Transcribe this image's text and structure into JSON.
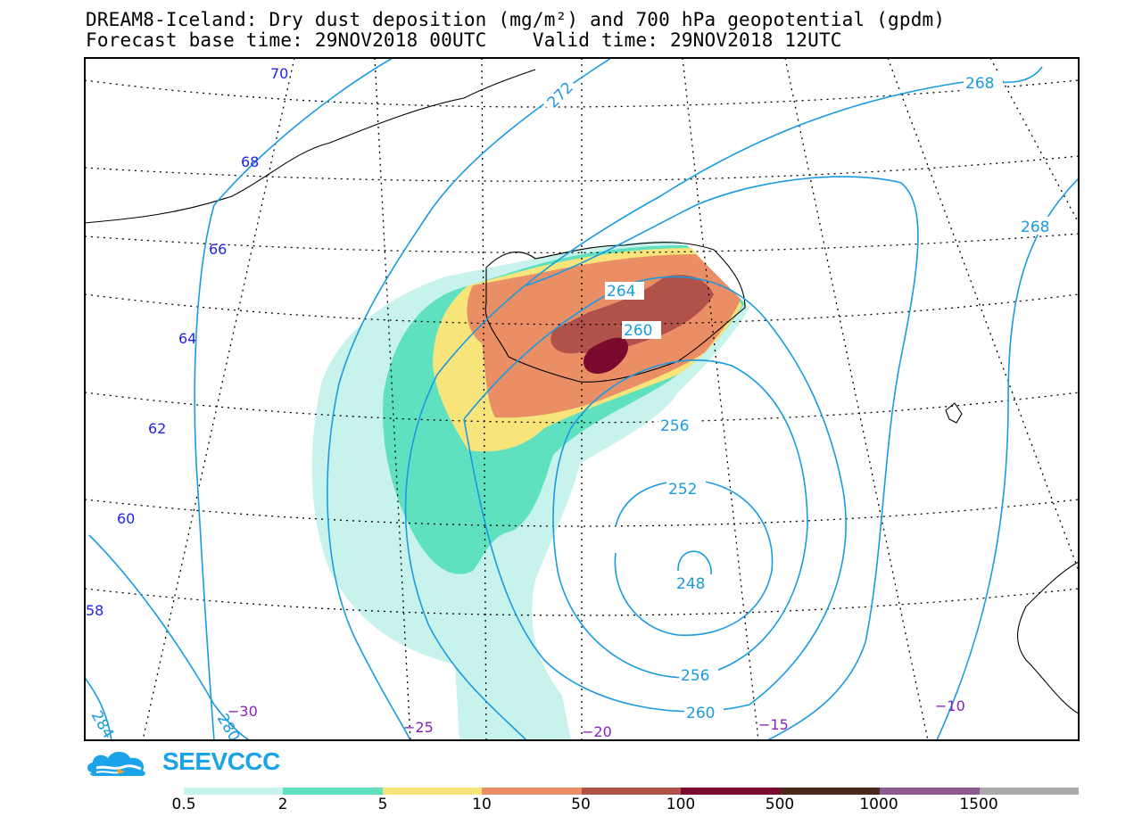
{
  "title": {
    "line1": "DREAM8-Iceland: Dry dust deposition (mg/m²) and 700 hPa geopotential (gpdm)",
    "line2": "Forecast base time: 29NOV2018 00UTC    Valid time: 29NOV2018 12UTC"
  },
  "map": {
    "contour_color": "#1a9be0",
    "contour_labels": [
      "272",
      "268",
      "268",
      "264",
      "260",
      "256",
      "252",
      "248",
      "256",
      "260",
      "280",
      "284"
    ],
    "latitude_labels": [
      "70",
      "68",
      "66",
      "64",
      "62",
      "60",
      "58"
    ],
    "longitude_labels": [
      "−30",
      "−25",
      "−20",
      "−15",
      "−10"
    ]
  },
  "logo": {
    "text": "SEEVCCC",
    "icon": "cloud-icon"
  },
  "legend": {
    "colors": [
      "#c8f2ec",
      "#5fe1c0",
      "#f7e57c",
      "#ea8e66",
      "#b0524a",
      "#7a0b2e",
      "#4a2a1a",
      "#8c5a8c",
      "#aaaaaa"
    ],
    "labels": [
      "0.5",
      "2",
      "5",
      "10",
      "50",
      "100",
      "500",
      "1000",
      "1500"
    ]
  }
}
